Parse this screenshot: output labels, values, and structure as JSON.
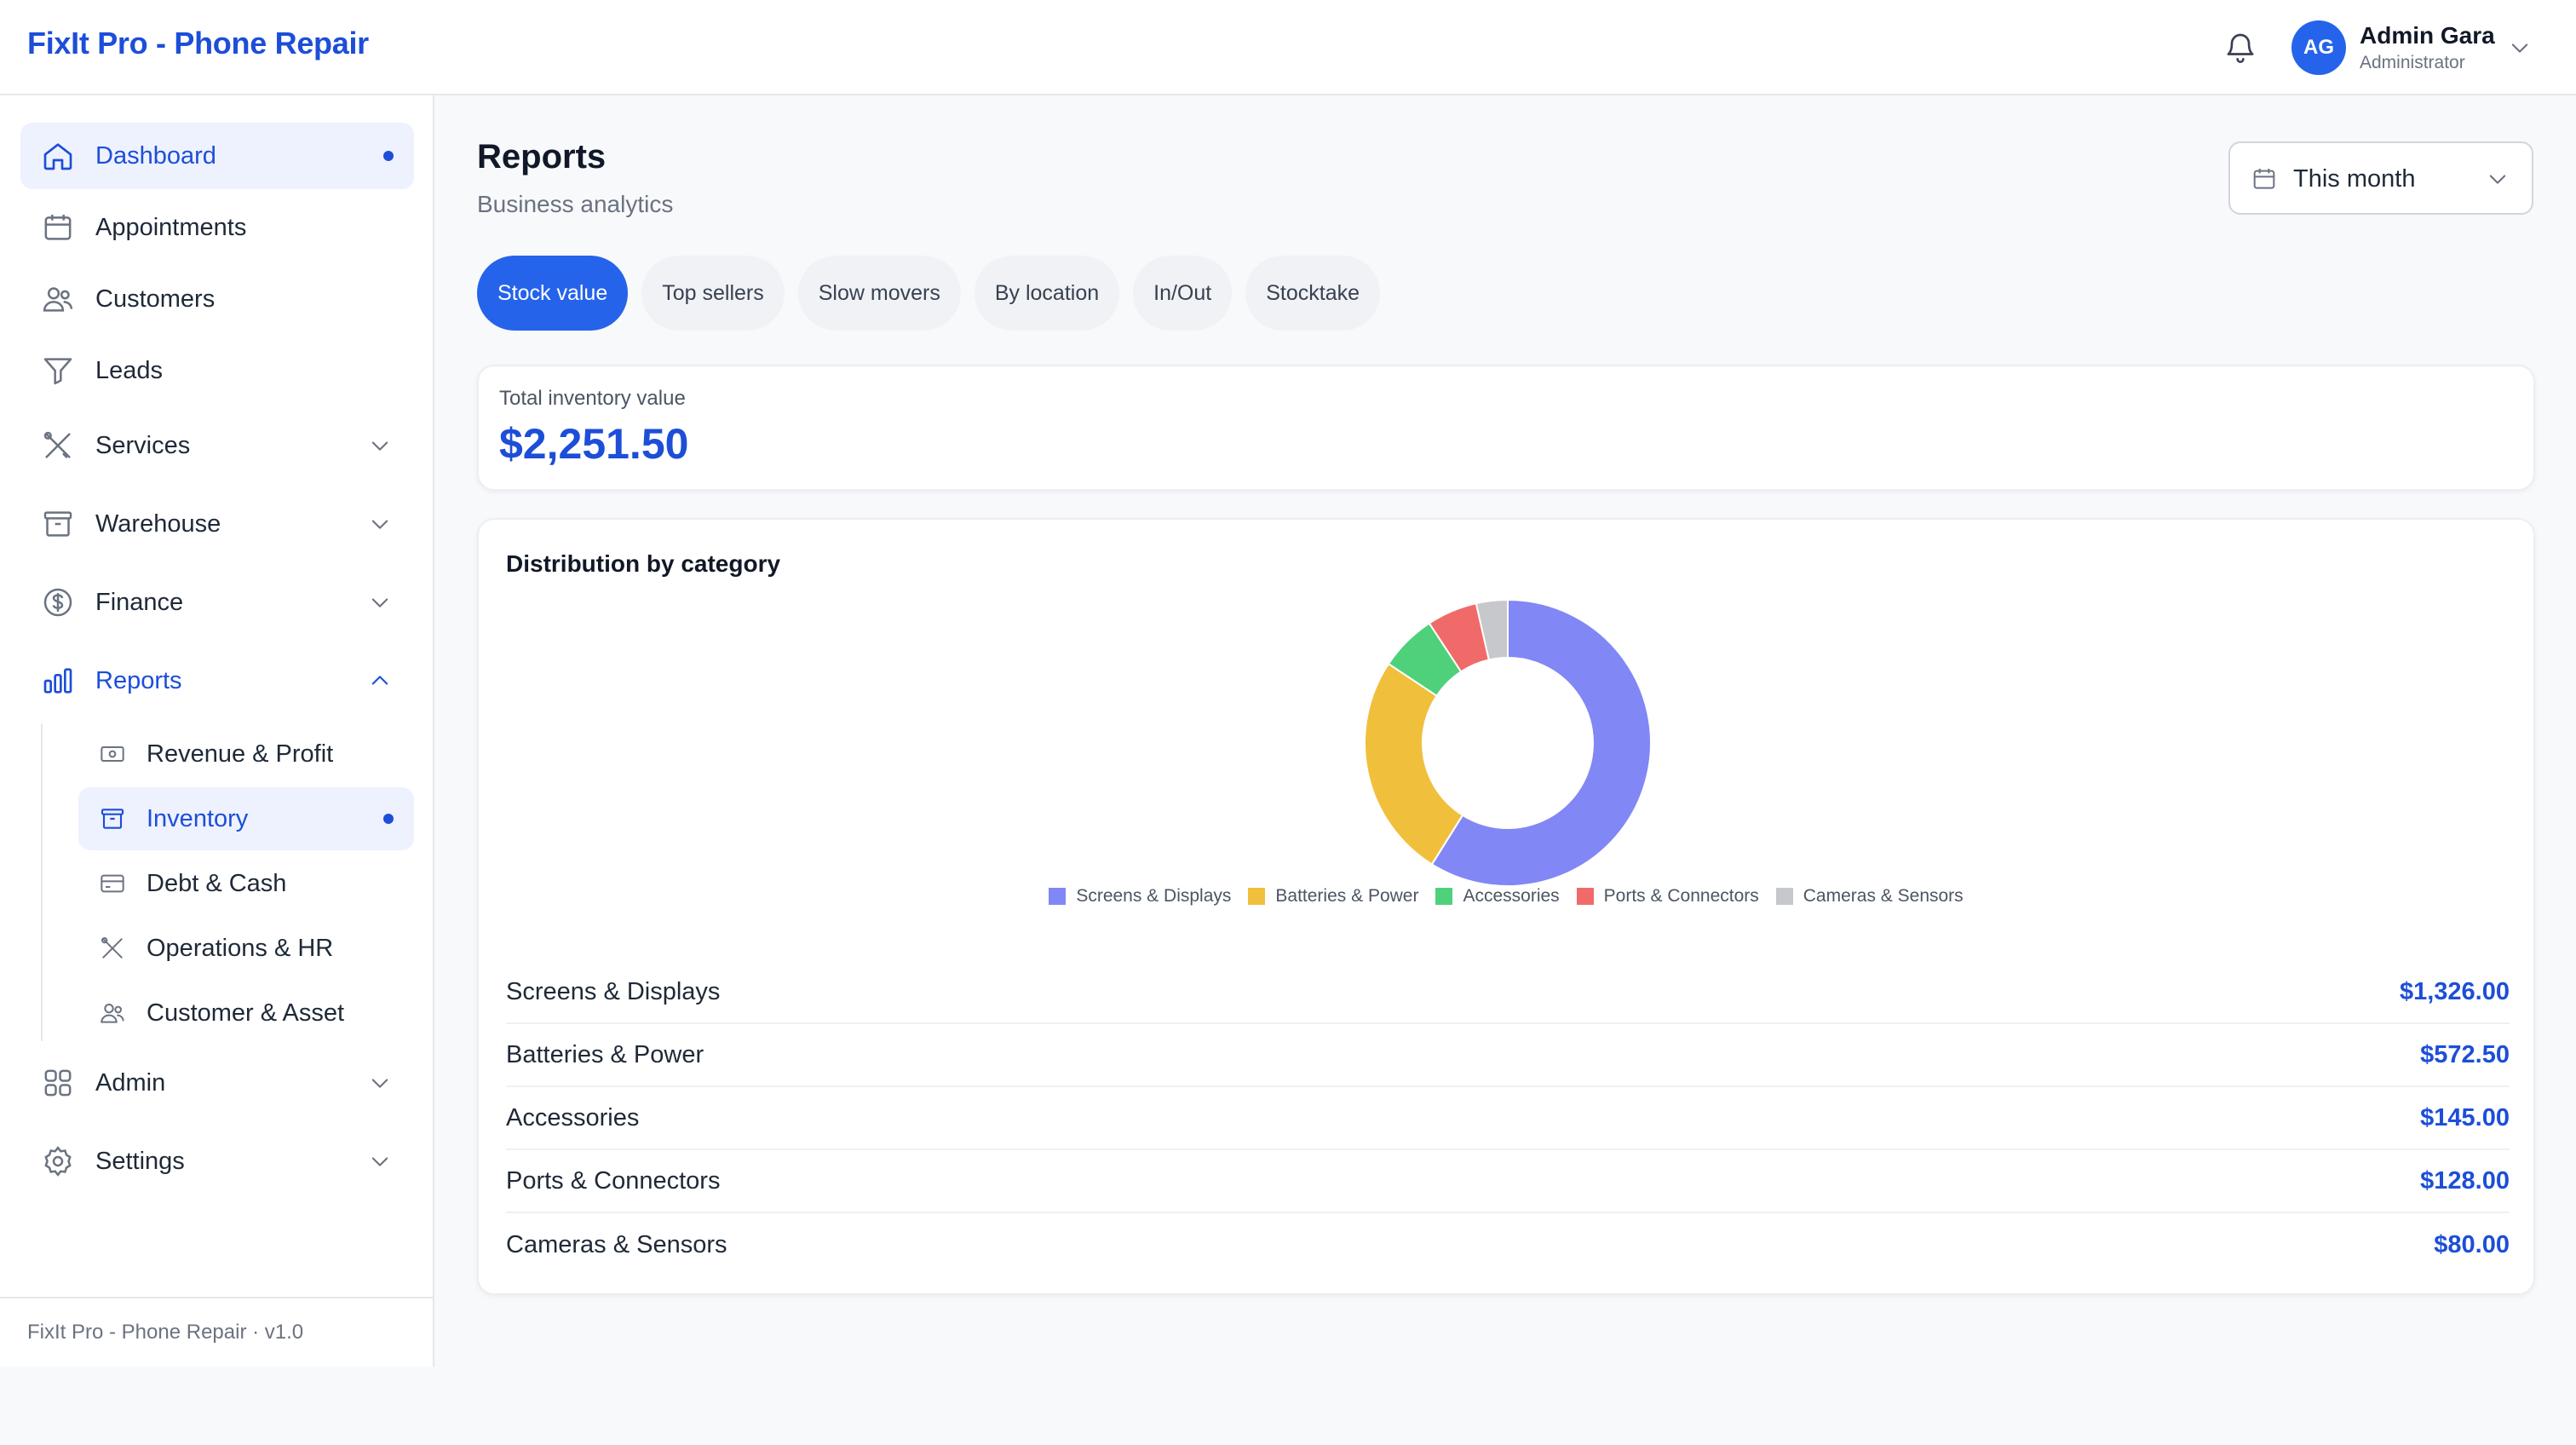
{
  "app": {
    "brand": "FixIt Pro - Phone Repair",
    "footer": "FixIt Pro - Phone Repair · v1.0"
  },
  "user": {
    "initials": "AG",
    "name": "Admin Gara",
    "role": "Administrator"
  },
  "sidebar": {
    "items": [
      {
        "label": "Dashboard",
        "icon": "home-icon"
      },
      {
        "label": "Appointments",
        "icon": "calendar-icon"
      },
      {
        "label": "Customers",
        "icon": "users-icon"
      },
      {
        "label": "Leads",
        "icon": "funnel-icon"
      },
      {
        "label": "Services",
        "icon": "tools-icon"
      },
      {
        "label": "Warehouse",
        "icon": "archive-icon"
      },
      {
        "label": "Finance",
        "icon": "dollar-icon"
      },
      {
        "label": "Reports",
        "icon": "bar-chart-icon"
      },
      {
        "label": "Admin",
        "icon": "grid-icon"
      },
      {
        "label": "Settings",
        "icon": "gear-icon"
      }
    ],
    "reports_sub": [
      {
        "label": "Revenue & Profit",
        "icon": "money-icon"
      },
      {
        "label": "Inventory",
        "icon": "archive-icon"
      },
      {
        "label": "Debt & Cash",
        "icon": "card-icon"
      },
      {
        "label": "Operations & HR",
        "icon": "tools-icon"
      },
      {
        "label": "Customer & Asset",
        "icon": "users-icon"
      }
    ]
  },
  "page": {
    "title": "Reports",
    "subtitle": "Business analytics",
    "date_range": "This month"
  },
  "tabs": [
    "Stock value",
    "Top sellers",
    "Slow movers",
    "By location",
    "In/Out",
    "Stocktake"
  ],
  "active_tab": "Stock value",
  "summary": {
    "label": "Total inventory value",
    "value": "$2,251.50"
  },
  "distribution": {
    "title": "Distribution by category",
    "rows": [
      {
        "name": "Screens & Displays",
        "value": "$1,326.00"
      },
      {
        "name": "Batteries & Power",
        "value": "$572.50"
      },
      {
        "name": "Accessories",
        "value": "$145.00"
      },
      {
        "name": "Ports & Connectors",
        "value": "$128.00"
      },
      {
        "name": "Cameras & Sensors",
        "value": "$80.00"
      }
    ]
  },
  "chart_data": {
    "type": "pie",
    "categories": [
      "Screens & Displays",
      "Batteries & Power",
      "Accessories",
      "Ports & Connectors",
      "Cameras & Sensors"
    ],
    "values": [
      1326.0,
      572.5,
      145.0,
      128.0,
      80.0
    ],
    "colors": [
      "#8187f5",
      "#f0c03c",
      "#4ed17a",
      "#f06a6a",
      "#c6c8cc"
    ],
    "legend": "bottom"
  }
}
